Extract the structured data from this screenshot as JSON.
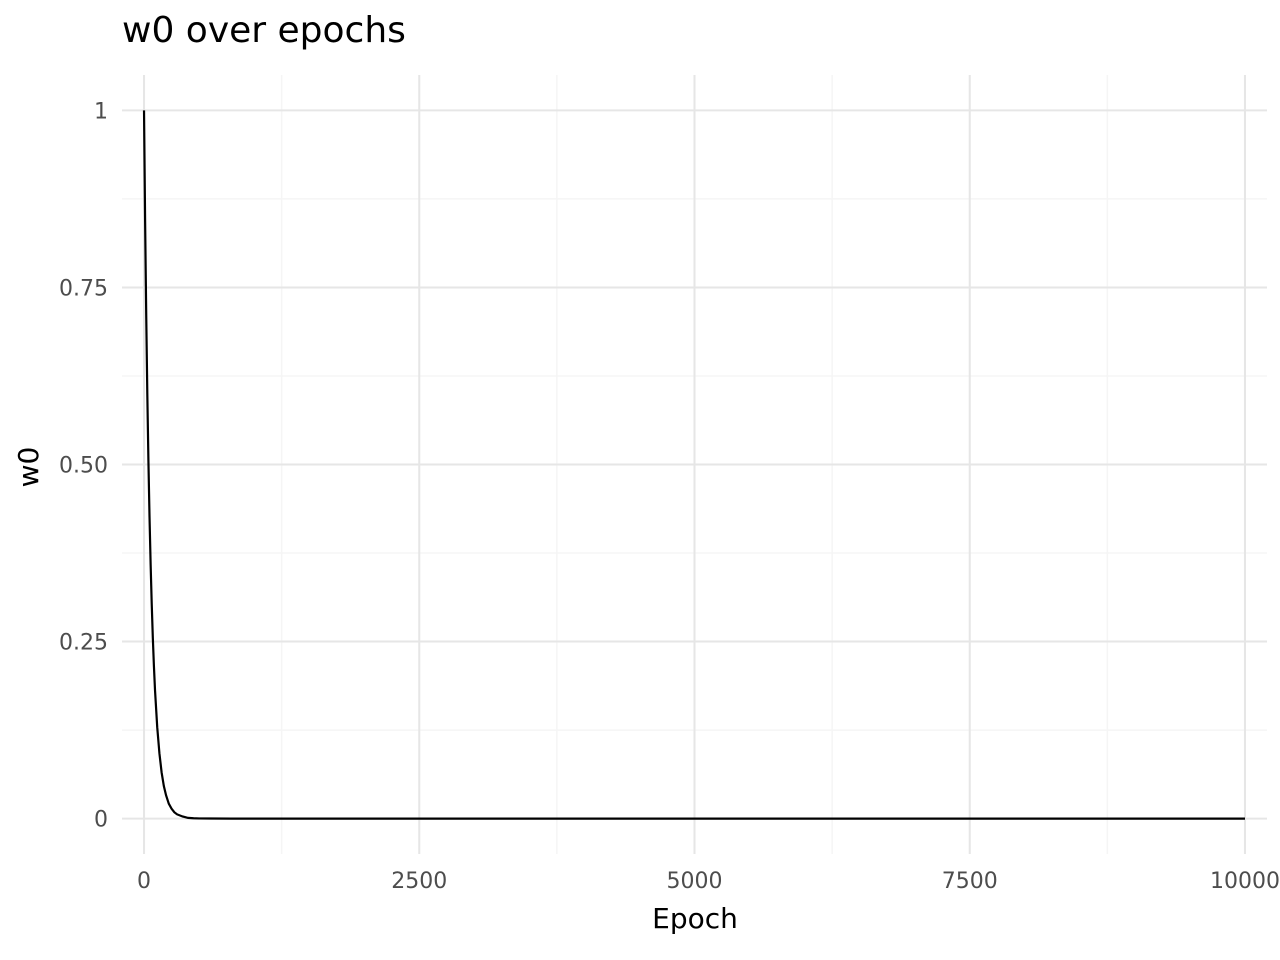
{
  "chart_data": {
    "type": "line",
    "title": "w0 over epochs",
    "xlabel": "Epoch",
    "ylabel": "w0",
    "xlim": [
      -200,
      10200
    ],
    "ylim": [
      -0.05,
      1.05
    ],
    "x_ticks": [
      0,
      2500,
      5000,
      7500,
      10000
    ],
    "x_tick_labels": [
      "0",
      "2500",
      "5000",
      "7500",
      "10000"
    ],
    "x_minor_ticks": [
      1250,
      3750,
      6250,
      8750
    ],
    "y_ticks": [
      0,
      0.25,
      0.5,
      0.75,
      1
    ],
    "y_tick_labels": [
      "0",
      "0.25",
      "0.50",
      "0.75",
      "1"
    ],
    "y_minor_ticks": [
      0.125,
      0.375,
      0.625,
      0.875
    ],
    "grid": true,
    "legend": "none",
    "series": [
      {
        "color": "#000000",
        "x": [
          0,
          10,
          20,
          30,
          40,
          50,
          60,
          70,
          80,
          90,
          100,
          120,
          140,
          160,
          180,
          200,
          225,
          250,
          275,
          300,
          350,
          400,
          450,
          500,
          600,
          800,
          1000,
          1500,
          2000,
          3000,
          4000,
          5000,
          6000,
          7000,
          8000,
          9000,
          10000
        ],
        "y": [
          1,
          0.843,
          0.711,
          0.599,
          0.505,
          0.426,
          0.359,
          0.303,
          0.255,
          0.215,
          0.181,
          0.129,
          0.092,
          0.065,
          0.046,
          0.033,
          0.021,
          0.014,
          0.009,
          0.006,
          0.003,
          0.001,
          0.0005,
          0.0002,
          0.0001,
          0,
          0,
          0,
          0,
          0,
          0,
          0,
          0,
          0,
          0,
          0,
          0
        ]
      }
    ]
  }
}
